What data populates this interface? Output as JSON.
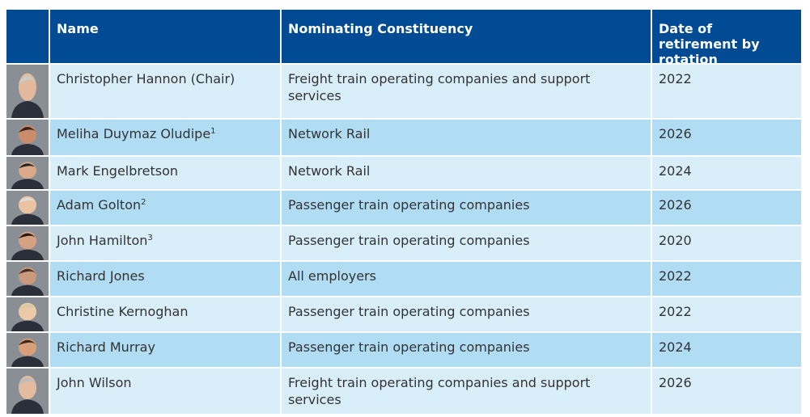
{
  "table": {
    "header": [
      "Name",
      "Nominating Constituency",
      "Date of retirement by rotation"
    ],
    "rows": [
      {
        "name": "Christopher Hannon (Chair)",
        "constituency": "Freight train operating companies and support services",
        "date": "2022"
      },
      {
        "name": "Meliha Duymaz Oludipe",
        "note": "1",
        "constituency": "Network Rail",
        "date": "2026"
      },
      {
        "name": "Mark Engelbretson",
        "constituency": "Network Rail",
        "date": "2024"
      },
      {
        "name": "Adam Golton",
        "note": "2",
        "constituency": "Passenger train operating companies",
        "date": "2026"
      },
      {
        "name": "John Hamilton",
        "note": "3",
        "constituency": "Passenger train operating companies",
        "date": "2020"
      },
      {
        "name": "Richard Jones",
        "constituency": "All employers",
        "date": "2022"
      },
      {
        "name": "Christine Kernoghan",
        "constituency": "Passenger train operating companies",
        "date": "2022"
      },
      {
        "name": "Richard Murray",
        "constituency": "Passenger train operating companies",
        "date": "2024"
      },
      {
        "name": "John Wilson",
        "constituency": "Freight train operating companies and support services",
        "date": "2026"
      }
    ]
  }
}
